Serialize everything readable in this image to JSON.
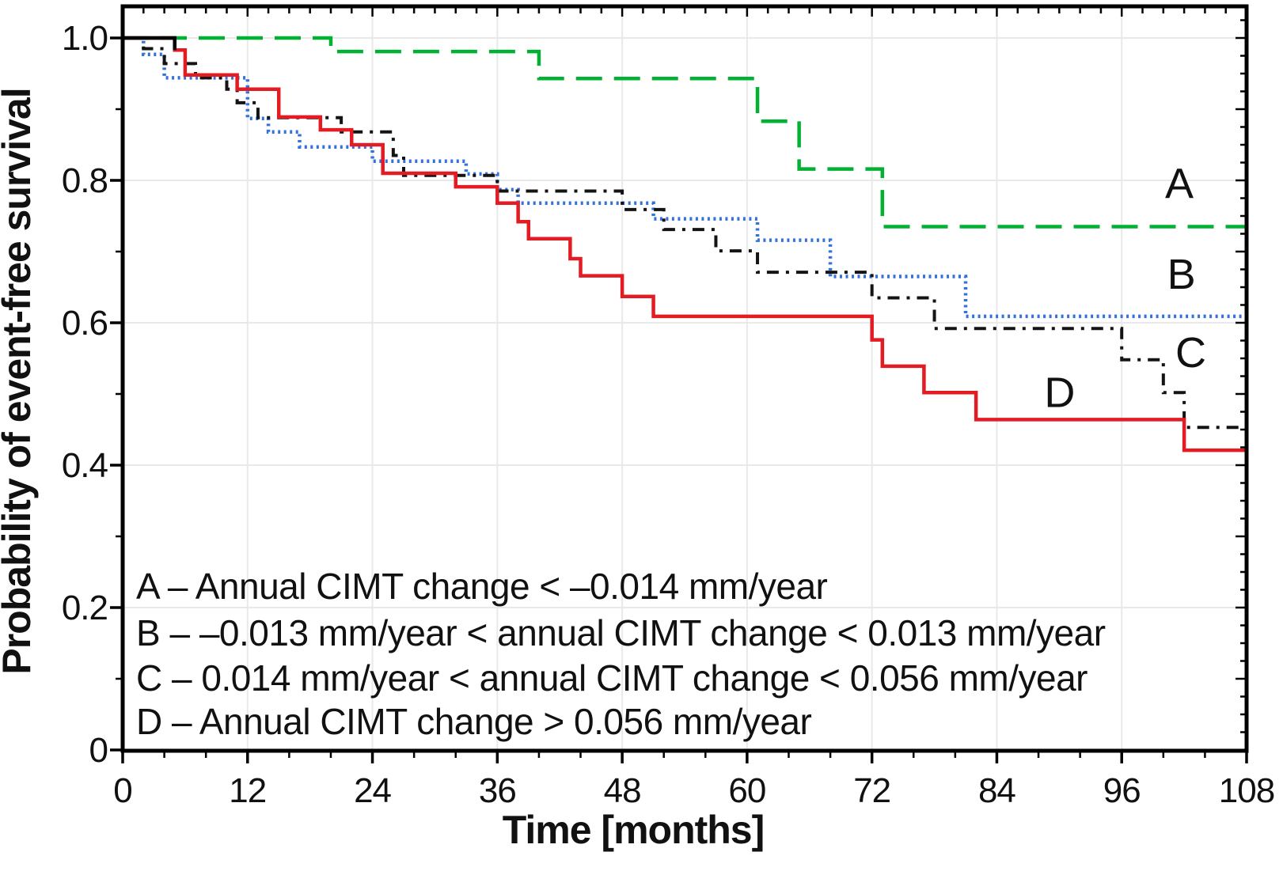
{
  "figure": {
    "background": "#FFFFFF",
    "frame_color": "#000000",
    "grid_color": "#E9E9E9"
  },
  "chart_data": {
    "type": "line",
    "variant": "kaplan-meier-step",
    "title": "",
    "xlabel": "Time [months]",
    "ylabel": "Probability of event-free survival",
    "xlim": [
      0,
      108
    ],
    "ylim": [
      0,
      1.045
    ],
    "grid": true,
    "legend_position": "inside-bottom-left",
    "x_major_ticks": [
      0,
      12,
      24,
      36,
      48,
      60,
      72,
      84,
      96,
      108
    ],
    "x_tick_labels": [
      "0",
      "12",
      "24",
      "36",
      "48",
      "60",
      "72",
      "84",
      "96",
      "108"
    ],
    "x_minor_tick_step": 4,
    "x_top_minor_tick_step": 2,
    "y_major_ticks": [
      {
        "value": 0.0,
        "label": "0"
      },
      {
        "value": 0.2,
        "label": "0.2"
      },
      {
        "value": 0.4,
        "label": "0.4"
      },
      {
        "value": 0.6,
        "label": "0.6"
      },
      {
        "value": 0.8,
        "label": "0.8"
      },
      {
        "value": 1.0,
        "label": "1.0"
      }
    ],
    "y_minor_tick_step": 0.1,
    "y_right_minor_tick_step": 0.025,
    "series": [
      {
        "id": "A",
        "curve_label": "A",
        "curve_label_xy": [
          101.5,
          0.796
        ],
        "color": "#00B132",
        "line_style": "long-dash",
        "dash": "33 15",
        "line_width": 4.5,
        "points": [
          [
            0,
            1.0
          ],
          [
            20,
            0.981
          ],
          [
            40,
            0.943
          ],
          [
            61,
            0.883
          ],
          [
            65,
            0.816
          ],
          [
            73,
            0.735
          ]
        ],
        "extend_to": 108
      },
      {
        "id": "B",
        "curve_label": "B",
        "curve_label_xy": [
          101.7,
          0.669
        ],
        "color": "#3371DB",
        "line_style": "dotted",
        "dash": "3 4.5",
        "line_width": 4.5,
        "points": [
          [
            0,
            1.0
          ],
          [
            2,
            0.977
          ],
          [
            4,
            0.944
          ],
          [
            12,
            0.887
          ],
          [
            14,
            0.868
          ],
          [
            17,
            0.847
          ],
          [
            24,
            0.827
          ],
          [
            33,
            0.809
          ],
          [
            36,
            0.787
          ],
          [
            38,
            0.768
          ],
          [
            51,
            0.746
          ],
          [
            61,
            0.716
          ],
          [
            68,
            0.665
          ],
          [
            81,
            0.609
          ]
        ],
        "extend_to": 108
      },
      {
        "id": "C",
        "curve_label": "C",
        "curve_label_xy": [
          102.6,
          0.559
        ],
        "color": "#141414",
        "line_style": "dash-dot",
        "dash": "15 9 4 9",
        "line_width": 4,
        "points": [
          [
            0,
            1.0
          ],
          [
            2,
            0.985
          ],
          [
            4,
            0.964
          ],
          [
            7,
            0.944
          ],
          [
            10,
            0.928
          ],
          [
            11,
            0.909
          ],
          [
            13,
            0.888
          ],
          [
            21,
            0.868
          ],
          [
            26,
            0.835
          ],
          [
            27,
            0.807
          ],
          [
            36,
            0.785
          ],
          [
            48,
            0.759
          ],
          [
            52,
            0.731
          ],
          [
            57,
            0.701
          ],
          [
            61,
            0.671
          ],
          [
            72,
            0.635
          ],
          [
            78,
            0.592
          ],
          [
            96,
            0.548
          ],
          [
            100,
            0.502
          ],
          [
            102,
            0.453
          ]
        ],
        "extend_to": 108
      },
      {
        "id": "D",
        "curve_label": "D",
        "curve_label_xy": [
          90,
          0.503
        ],
        "color": "#E31B23",
        "line_style": "solid",
        "dash": "",
        "line_width": 4.5,
        "points": [
          [
            0,
            1.0
          ],
          [
            5,
            0.983
          ],
          [
            6,
            0.948
          ],
          [
            11,
            0.928
          ],
          [
            15,
            0.889
          ],
          [
            19,
            0.871
          ],
          [
            22,
            0.85
          ],
          [
            25,
            0.81
          ],
          [
            32,
            0.791
          ],
          [
            36,
            0.768
          ],
          [
            38,
            0.742
          ],
          [
            39,
            0.718
          ],
          [
            43,
            0.69
          ],
          [
            44,
            0.666
          ],
          [
            48,
            0.637
          ],
          [
            51,
            0.609
          ],
          [
            72,
            0.576
          ],
          [
            73,
            0.539
          ],
          [
            77,
            0.502
          ],
          [
            82,
            0.464
          ],
          [
            102,
            0.421
          ]
        ],
        "extend_to": 108
      }
    ],
    "start_overlap_segment": {
      "color": "#000000",
      "line_width": 4.5,
      "points": [
        [
          0,
          1.0
        ],
        [
          5,
          1.0
        ],
        [
          5,
          0.983
        ]
      ]
    },
    "legend_lines": [
      "A – Annual CIMT change < –0.014 mm/year",
      "B – –0.013 mm/year < annual CIMT change < 0.013 mm/year",
      "C – 0.014 mm/year < annual CIMT change < 0.056 mm/year",
      "D – Annual CIMT change > 0.056 mm/year"
    ]
  }
}
